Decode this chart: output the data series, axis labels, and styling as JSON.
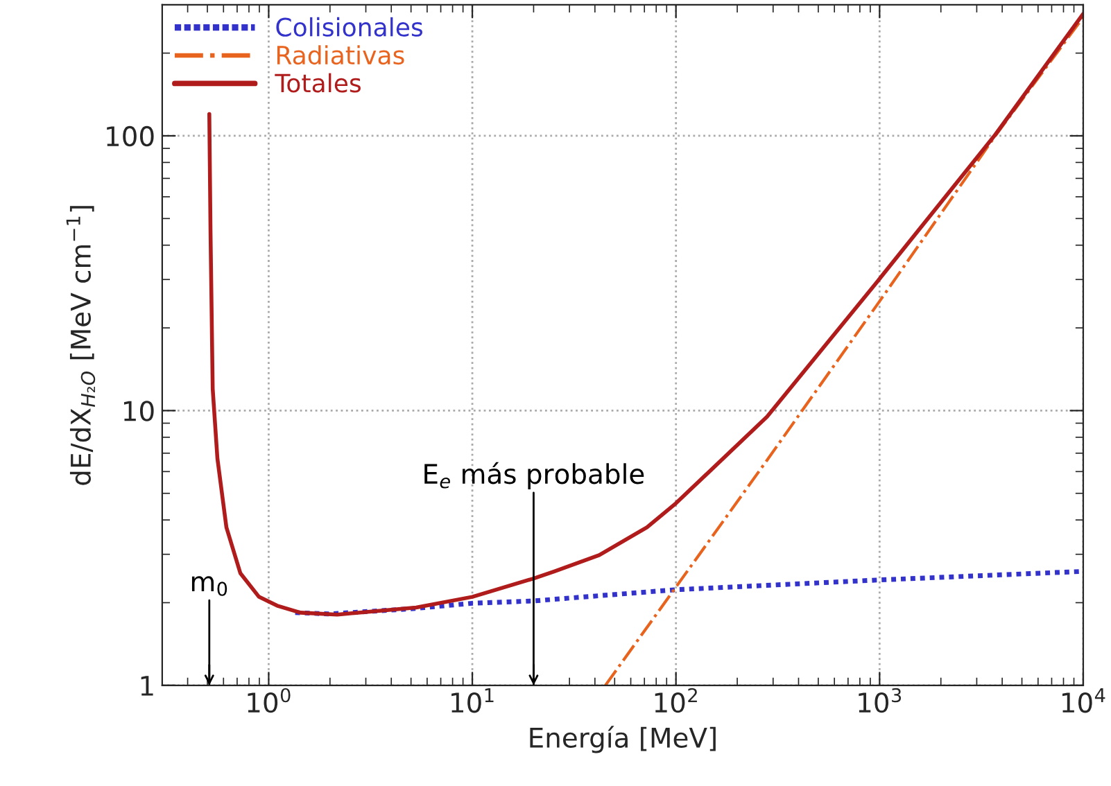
{
  "chart_data": {
    "type": "line",
    "xlabel": "Energía [MeV]",
    "ylabel": "dE/dX$_{H₂O}$ [MeV cm$^{−1}$]",
    "log": "xy",
    "grid": true,
    "legend": "top left",
    "xlim": [
      0.3,
      10000
    ],
    "ylim": [
      1,
      300
    ],
    "xticks": [
      {
        "value": 1,
        "label": "10$^{0}$"
      },
      {
        "value": 10,
        "label": "10$^{1}$"
      },
      {
        "value": 100,
        "label": "10$^{2}$"
      },
      {
        "value": 1000,
        "label": "10$^{3}$"
      },
      {
        "value": 10000,
        "label": "10$^{4}$"
      }
    ],
    "yticks": [
      1,
      10,
      100
    ],
    "series": [
      {
        "name": "Colisionales",
        "color": "#3333cc",
        "line_style": "dotted",
        "x": [
          1.35,
          2,
          5,
          10,
          20,
          100,
          1000,
          10000
        ],
        "values": [
          1.84,
          1.82,
          1.9,
          1.99,
          2.03,
          2.23,
          2.42,
          2.6
        ]
      },
      {
        "name": "Radiativas",
        "color": "#e8641e",
        "line_style": "dashdot",
        "x": [
          45,
          100,
          280,
          1000,
          3700,
          10000
        ],
        "values": [
          1,
          2.28,
          6.6,
          25,
          100,
          270
        ]
      },
      {
        "name": "Totales",
        "color": "#b01c1c",
        "line_style": "solid",
        "x": [
          0.511,
          0.518,
          0.531,
          0.56,
          0.62,
          0.726,
          0.896,
          1.1,
          1.43,
          2.17,
          5.3,
          10,
          20,
          25.3,
          42,
          72,
          100,
          280,
          975,
          3700,
          10000
        ],
        "values": [
          120,
          45,
          12,
          6.7,
          3.76,
          2.56,
          2.1,
          1.95,
          1.84,
          1.81,
          1.92,
          2.1,
          2.45,
          2.6,
          2.98,
          3.76,
          4.6,
          9.5,
          29.5,
          101,
          278
        ]
      }
    ],
    "ref_lines": [
      {
        "axis": "x",
        "value": 0.511,
        "label": "m$_{0}$"
      },
      {
        "axis": "x",
        "value": 20,
        "label": "E$_{e}$ más probable"
      }
    ]
  }
}
